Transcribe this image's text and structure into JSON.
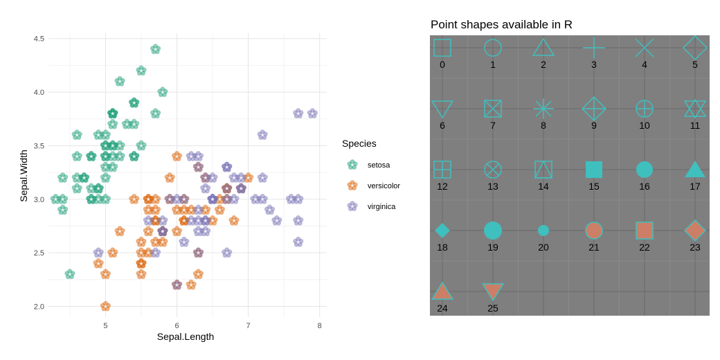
{
  "chart_data": [
    {
      "type": "scatter",
      "title": "",
      "xlabel": "Sepal.Length",
      "ylabel": "Sepal.Width",
      "xlim": [
        4.2,
        8.1
      ],
      "ylim": [
        1.9,
        4.55
      ],
      "x_ticks": [
        5,
        6,
        7,
        8
      ],
      "x_tick_labels": [
        "5",
        "6",
        "7",
        "8"
      ],
      "y_ticks": [
        2.0,
        2.5,
        3.0,
        3.5,
        4.0,
        4.5
      ],
      "y_tick_labels": [
        "2.0",
        "2.5",
        "3.0",
        "3.5",
        "4.0",
        "4.5"
      ],
      "grid": true,
      "marker": "flower",
      "legend": {
        "title": "Species",
        "position": "right"
      },
      "series": [
        {
          "name": "setosa",
          "color": "#1b9e77",
          "points": [
            [
              5.1,
              3.5
            ],
            [
              4.9,
              3.0
            ],
            [
              4.7,
              3.2
            ],
            [
              4.6,
              3.1
            ],
            [
              5.0,
              3.6
            ],
            [
              5.4,
              3.9
            ],
            [
              4.6,
              3.4
            ],
            [
              5.0,
              3.4
            ],
            [
              4.4,
              2.9
            ],
            [
              4.9,
              3.1
            ],
            [
              5.4,
              3.7
            ],
            [
              4.8,
              3.4
            ],
            [
              4.8,
              3.0
            ],
            [
              4.3,
              3.0
            ],
            [
              5.8,
              4.0
            ],
            [
              5.7,
              4.4
            ],
            [
              5.4,
              3.9
            ],
            [
              5.1,
              3.5
            ],
            [
              5.7,
              3.8
            ],
            [
              5.1,
              3.8
            ],
            [
              5.4,
              3.4
            ],
            [
              5.1,
              3.7
            ],
            [
              4.6,
              3.6
            ],
            [
              5.1,
              3.3
            ],
            [
              4.8,
              3.4
            ],
            [
              5.0,
              3.0
            ],
            [
              5.0,
              3.4
            ],
            [
              5.2,
              3.5
            ],
            [
              5.2,
              3.4
            ],
            [
              4.7,
              3.2
            ],
            [
              4.8,
              3.1
            ],
            [
              5.4,
              3.4
            ],
            [
              5.2,
              4.1
            ],
            [
              5.5,
              4.2
            ],
            [
              4.9,
              3.1
            ],
            [
              5.0,
              3.2
            ],
            [
              5.5,
              3.5
            ],
            [
              4.9,
              3.6
            ],
            [
              4.4,
              3.0
            ],
            [
              5.1,
              3.4
            ],
            [
              5.0,
              3.5
            ],
            [
              4.5,
              2.3
            ],
            [
              4.4,
              3.2
            ],
            [
              5.0,
              3.5
            ],
            [
              5.1,
              3.8
            ],
            [
              4.8,
              3.0
            ],
            [
              5.1,
              3.8
            ],
            [
              4.6,
              3.2
            ],
            [
              5.3,
              3.7
            ],
            [
              5.0,
              3.3
            ]
          ]
        },
        {
          "name": "versicolor",
          "color": "#d95f02",
          "points": [
            [
              7.0,
              3.2
            ],
            [
              6.4,
              3.2
            ],
            [
              6.9,
              3.1
            ],
            [
              5.5,
              2.3
            ],
            [
              6.5,
              2.8
            ],
            [
              5.7,
              2.8
            ],
            [
              6.3,
              3.3
            ],
            [
              4.9,
              2.4
            ],
            [
              6.6,
              2.9
            ],
            [
              5.2,
              2.7
            ],
            [
              5.0,
              2.0
            ],
            [
              5.9,
              3.0
            ],
            [
              6.0,
              2.2
            ],
            [
              6.1,
              2.9
            ],
            [
              5.6,
              2.9
            ],
            [
              6.7,
              3.1
            ],
            [
              5.6,
              3.0
            ],
            [
              5.8,
              2.7
            ],
            [
              6.2,
              2.2
            ],
            [
              5.6,
              2.5
            ],
            [
              5.9,
              3.2
            ],
            [
              6.1,
              2.8
            ],
            [
              6.3,
              2.5
            ],
            [
              6.1,
              2.8
            ],
            [
              6.4,
              2.9
            ],
            [
              6.6,
              3.0
            ],
            [
              6.8,
              2.8
            ],
            [
              6.7,
              3.0
            ],
            [
              6.0,
              2.9
            ],
            [
              5.7,
              2.6
            ],
            [
              5.5,
              2.4
            ],
            [
              5.5,
              2.4
            ],
            [
              5.8,
              2.7
            ],
            [
              6.0,
              2.7
            ],
            [
              5.4,
              3.0
            ],
            [
              6.0,
              3.4
            ],
            [
              6.7,
              3.1
            ],
            [
              6.3,
              2.3
            ],
            [
              5.6,
              3.0
            ],
            [
              5.5,
              2.5
            ],
            [
              5.5,
              2.6
            ],
            [
              6.1,
              3.0
            ],
            [
              5.8,
              2.6
            ],
            [
              5.0,
              2.3
            ],
            [
              5.6,
              2.7
            ],
            [
              5.7,
              3.0
            ],
            [
              5.7,
              2.9
            ],
            [
              6.2,
              2.9
            ],
            [
              5.1,
              2.5
            ],
            [
              5.7,
              2.8
            ]
          ]
        },
        {
          "name": "virginica",
          "color": "#7570b3",
          "points": [
            [
              6.3,
              3.3
            ],
            [
              5.8,
              2.7
            ],
            [
              7.1,
              3.0
            ],
            [
              6.3,
              2.9
            ],
            [
              6.5,
              3.0
            ],
            [
              7.6,
              3.0
            ],
            [
              4.9,
              2.5
            ],
            [
              7.3,
              2.9
            ],
            [
              6.7,
              2.5
            ],
            [
              7.2,
              3.6
            ],
            [
              6.5,
              3.2
            ],
            [
              6.4,
              2.7
            ],
            [
              6.8,
              3.0
            ],
            [
              5.7,
              2.5
            ],
            [
              5.8,
              2.8
            ],
            [
              6.4,
              3.2
            ],
            [
              6.5,
              3.0
            ],
            [
              7.7,
              3.8
            ],
            [
              7.7,
              2.6
            ],
            [
              6.0,
              2.2
            ],
            [
              6.9,
              3.2
            ],
            [
              5.6,
              2.8
            ],
            [
              7.7,
              2.8
            ],
            [
              6.3,
              2.7
            ],
            [
              6.7,
              3.3
            ],
            [
              7.2,
              3.2
            ],
            [
              6.2,
              2.8
            ],
            [
              6.1,
              3.0
            ],
            [
              6.4,
              2.8
            ],
            [
              7.2,
              3.0
            ],
            [
              7.4,
              2.8
            ],
            [
              7.9,
              3.8
            ],
            [
              6.4,
              2.8
            ],
            [
              6.3,
              2.8
            ],
            [
              6.1,
              2.6
            ],
            [
              7.7,
              3.0
            ],
            [
              6.3,
              3.4
            ],
            [
              6.4,
              3.1
            ],
            [
              6.0,
              3.0
            ],
            [
              6.9,
              3.1
            ],
            [
              6.7,
              3.1
            ],
            [
              6.9,
              3.1
            ],
            [
              5.8,
              2.7
            ],
            [
              6.8,
              3.2
            ],
            [
              6.7,
              3.3
            ],
            [
              6.7,
              3.0
            ],
            [
              6.3,
              2.5
            ],
            [
              6.5,
              3.0
            ],
            [
              6.2,
              3.4
            ],
            [
              5.9,
              3.0
            ]
          ]
        }
      ]
    },
    {
      "type": "table",
      "title": "Point shapes available in R",
      "background": "#7f7f7f",
      "stroke_color": "#40bfbf",
      "fill_color": "#cc7f66",
      "columns": 6,
      "shapes": [
        {
          "code": 0,
          "label": "0",
          "shape": "square-open"
        },
        {
          "code": 1,
          "label": "1",
          "shape": "circle-open"
        },
        {
          "code": 2,
          "label": "2",
          "shape": "triangle-open"
        },
        {
          "code": 3,
          "label": "3",
          "shape": "plus"
        },
        {
          "code": 4,
          "label": "4",
          "shape": "cross"
        },
        {
          "code": 5,
          "label": "5",
          "shape": "diamond-open"
        },
        {
          "code": 6,
          "label": "6",
          "shape": "triangle-down-open"
        },
        {
          "code": 7,
          "label": "7",
          "shape": "square-cross"
        },
        {
          "code": 8,
          "label": "8",
          "shape": "asterisk"
        },
        {
          "code": 9,
          "label": "9",
          "shape": "diamond-plus"
        },
        {
          "code": 10,
          "label": "10",
          "shape": "circle-plus"
        },
        {
          "code": 11,
          "label": "11",
          "shape": "triangles-up-down"
        },
        {
          "code": 12,
          "label": "12",
          "shape": "square-plus"
        },
        {
          "code": 13,
          "label": "13",
          "shape": "circle-cross"
        },
        {
          "code": 14,
          "label": "14",
          "shape": "square-triangle"
        },
        {
          "code": 15,
          "label": "15",
          "shape": "square-solid"
        },
        {
          "code": 16,
          "label": "16",
          "shape": "circle-solid"
        },
        {
          "code": 17,
          "label": "17",
          "shape": "triangle-solid"
        },
        {
          "code": 18,
          "label": "18",
          "shape": "diamond-solid"
        },
        {
          "code": 19,
          "label": "19",
          "shape": "circle-solid-large"
        },
        {
          "code": 20,
          "label": "20",
          "shape": "circle-solid-small"
        },
        {
          "code": 21,
          "label": "21",
          "shape": "circle-filled"
        },
        {
          "code": 22,
          "label": "22",
          "shape": "square-filled"
        },
        {
          "code": 23,
          "label": "23",
          "shape": "diamond-filled"
        },
        {
          "code": 24,
          "label": "24",
          "shape": "triangle-filled"
        },
        {
          "code": 25,
          "label": "25",
          "shape": "triangle-down-filled"
        }
      ]
    }
  ]
}
